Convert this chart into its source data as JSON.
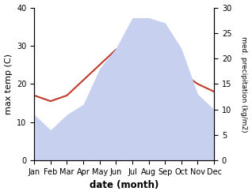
{
  "months": [
    "Jan",
    "Feb",
    "Mar",
    "Apr",
    "May",
    "Jun",
    "Jul",
    "Aug",
    "Sep",
    "Oct",
    "Nov",
    "Dec"
  ],
  "temp": [
    17,
    15.5,
    17,
    21,
    25,
    29,
    30,
    29.5,
    27,
    23,
    20,
    18
  ],
  "precip": [
    9,
    6,
    9,
    11,
    18,
    22,
    28,
    28,
    27,
    22,
    13,
    10
  ],
  "temp_ylim": [
    0,
    40
  ],
  "precip_ylim": [
    0,
    30
  ],
  "temp_color": "#c0392b",
  "precip_fill_color": "#c8d0f0",
  "precip_edge_color": "#c8d0f0",
  "xlabel": "date (month)",
  "ylabel_left": "max temp (C)",
  "ylabel_right": "med. precipitation (kg/m2)",
  "left_ticks": [
    0,
    10,
    20,
    30,
    40
  ],
  "right_ticks": [
    0,
    5,
    10,
    15,
    20,
    25,
    30
  ]
}
